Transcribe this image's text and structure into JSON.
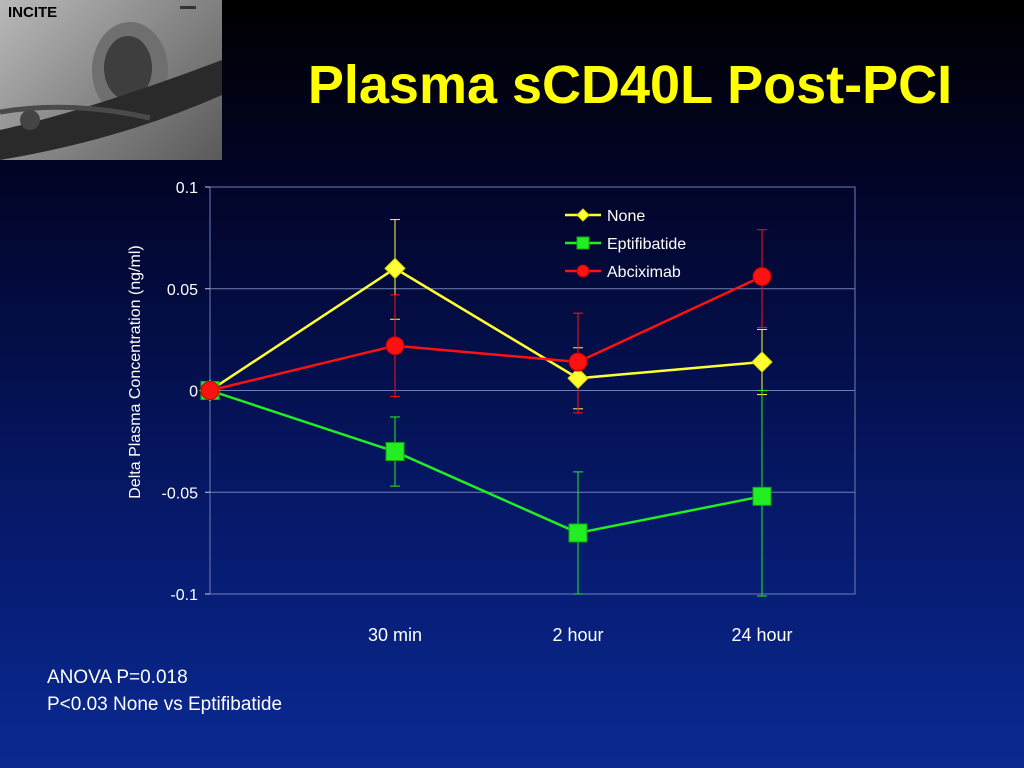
{
  "logo": {
    "label": "INCITE"
  },
  "slide": {
    "title": "Plasma sCD40L Post-PCI",
    "footnotes": [
      "ANOVA P=0.018",
      "P<0.03 None vs Eptifibatide"
    ]
  },
  "chart_data": {
    "type": "line",
    "title": "",
    "xlabel": "",
    "ylabel": "Delta Plasma Concentration (ng/ml)",
    "categories": [
      "",
      "30 min",
      "2 hour",
      "24 hour"
    ],
    "ylim": [
      -0.1,
      0.1
    ],
    "yticks": [
      0.1,
      0.05,
      0,
      -0.05,
      -0.1
    ],
    "ytick_labels": [
      "0.1",
      "0.05",
      "0",
      "-0.05",
      "-0.1"
    ],
    "grid": true,
    "legend_position": "top-right",
    "series": [
      {
        "name": "None",
        "color": "#ffff33",
        "marker": "diamond",
        "values": [
          0,
          0.06,
          0.006,
          0.014
        ],
        "err_low": [
          0,
          0.035,
          -0.009,
          -0.002
        ],
        "err_high": [
          0,
          0.084,
          0.021,
          0.03
        ]
      },
      {
        "name": "Eptifibatide",
        "color": "#22ee22",
        "marker": "square",
        "values": [
          0,
          -0.03,
          -0.07,
          -0.052
        ],
        "err_low": [
          0,
          -0.047,
          -0.1,
          -0.101
        ],
        "err_high": [
          0,
          -0.013,
          -0.04,
          0.0
        ]
      },
      {
        "name": "Abciximab",
        "color": "#ff1111",
        "marker": "circle",
        "values": [
          0,
          0.022,
          0.014,
          0.056
        ],
        "err_low": [
          0,
          -0.003,
          -0.011,
          0.031
        ],
        "err_high": [
          0,
          0.047,
          0.038,
          0.079
        ]
      }
    ]
  }
}
